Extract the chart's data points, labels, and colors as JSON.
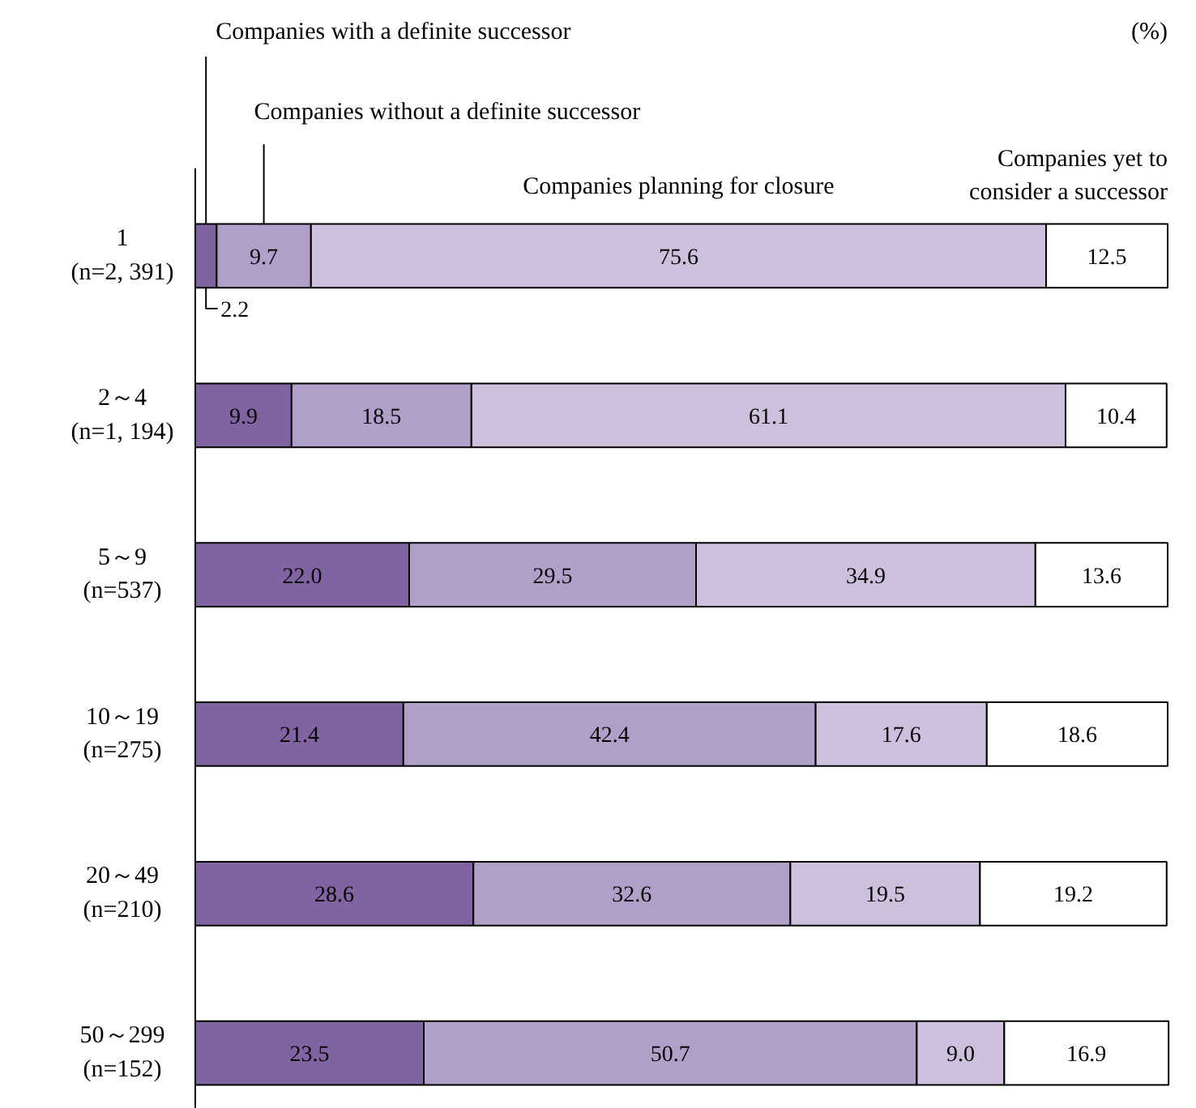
{
  "chart_data": {
    "type": "bar",
    "orientation": "horizontal",
    "stacked": true,
    "grid": false,
    "tick_labels": "y",
    "xlim": [
      0,
      100
    ],
    "categories": [
      "1\n(n=2, 391)",
      "2～4\n(n=1, 194)",
      "5～9\n(n=537)",
      "10～19\n(n=275)",
      "20～49\n(n=210)",
      "50～299\n(n=152)"
    ],
    "series": [
      {
        "name": "Companies with a definite successor",
        "color": "#8064a2",
        "values": [
          2.2,
          9.9,
          22.0,
          21.4,
          28.6,
          23.5
        ],
        "value_labels": [
          "2.2",
          "9.9",
          "22.0",
          "21.4",
          "28.6",
          "23.5"
        ]
      },
      {
        "name": "Companies without a definite successor",
        "color": "#b0a0c9",
        "values": [
          9.7,
          18.5,
          29.5,
          42.4,
          32.6,
          50.7
        ],
        "value_labels": [
          "9.7",
          "18.5",
          "29.5",
          "42.4",
          "32.6",
          "50.7"
        ]
      },
      {
        "name": "Companies planning for closure",
        "color": "#ccc0dd",
        "values": [
          75.6,
          61.1,
          34.9,
          17.6,
          19.5,
          9.0
        ],
        "value_labels": [
          "75.6",
          "61.1",
          "34.9",
          "17.6",
          "19.5",
          "9.0"
        ]
      },
      {
        "name": "Companies yet to\nconsider a successor",
        "color": "#ffffff",
        "values": [
          12.5,
          10.4,
          13.6,
          18.6,
          19.2,
          16.9
        ],
        "value_labels": [
          "12.5",
          "10.4",
          "13.6",
          "18.6",
          "19.2",
          "16.9"
        ]
      }
    ],
    "annotations": [
      "(%)"
    ]
  }
}
